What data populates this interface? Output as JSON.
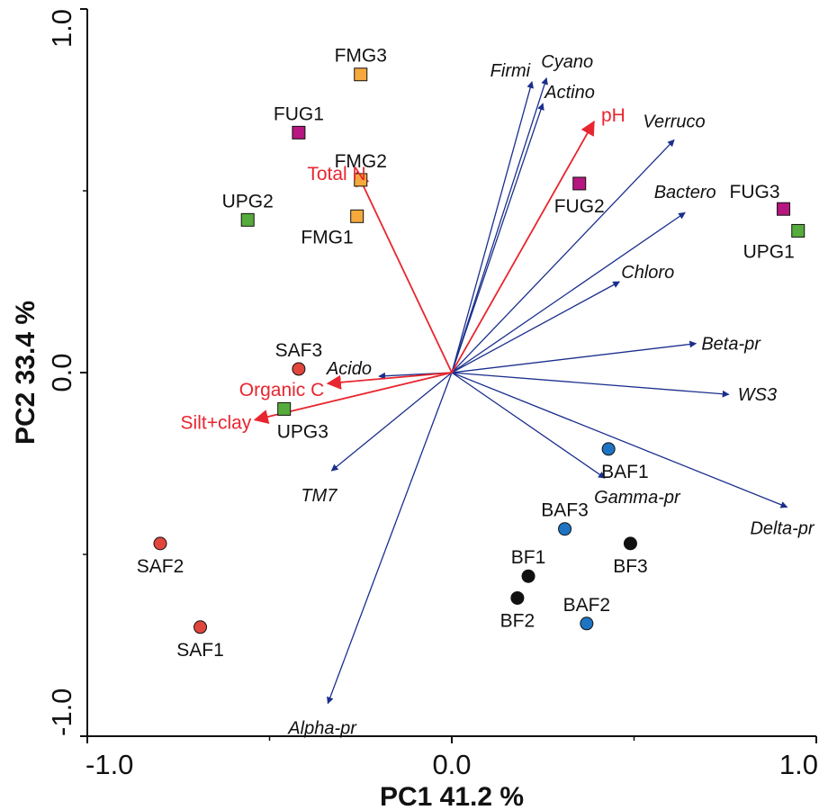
{
  "chart_data": {
    "type": "scatter",
    "subtype": "pca-biplot",
    "xlabel": "PC1 41.2 %",
    "ylabel": "PC2 33.4 %",
    "xlim": [
      -1.0,
      1.0
    ],
    "ylim": [
      -1.0,
      1.0
    ],
    "x_ticks": [
      {
        "value": -1.0,
        "label": "-1.0"
      },
      {
        "value": 0.0,
        "label": "0.0"
      },
      {
        "value": 1.0,
        "label": "1.0"
      }
    ],
    "y_ticks": [
      {
        "value": -1.0,
        "label": "-1.0"
      },
      {
        "value": 0.0,
        "label": "0.0"
      },
      {
        "value": 1.0,
        "label": "1.0"
      }
    ],
    "minor_ticks": [
      -0.5,
      0.5
    ],
    "grid": false,
    "colors": {
      "orange": "#f5a93c",
      "magenta": "#b5167f",
      "green": "#55ab3b",
      "red": "#e0463c",
      "blue": "#1e74c2",
      "black": "#111111",
      "species_arrow": "#1a2f8c",
      "env_arrow": "#e8262f"
    },
    "points": [
      {
        "name": "FMG3",
        "x": -0.25,
        "y": 0.82,
        "shape": "square",
        "color": "orange",
        "label_pos": "above"
      },
      {
        "name": "FUG1",
        "x": -0.42,
        "y": 0.66,
        "shape": "square",
        "color": "magenta",
        "label_pos": "above"
      },
      {
        "name": "FMG2",
        "x": -0.25,
        "y": 0.53,
        "shape": "square",
        "color": "orange",
        "label_pos": "above"
      },
      {
        "name": "FMG1",
        "x": -0.26,
        "y": 0.43,
        "shape": "square",
        "color": "orange",
        "label_pos": "below-left"
      },
      {
        "name": "UPG2",
        "x": -0.56,
        "y": 0.42,
        "shape": "square",
        "color": "green",
        "label_pos": "above"
      },
      {
        "name": "FUG2",
        "x": 0.35,
        "y": 0.52,
        "shape": "square",
        "color": "magenta",
        "label_pos": "below"
      },
      {
        "name": "FUG3",
        "x": 0.91,
        "y": 0.45,
        "shape": "square",
        "color": "magenta",
        "label_pos": "above-left"
      },
      {
        "name": "UPG1",
        "x": 0.95,
        "y": 0.39,
        "shape": "square",
        "color": "green",
        "label_pos": "below-left"
      },
      {
        "name": "UPG3",
        "x": -0.46,
        "y": -0.1,
        "shape": "square",
        "color": "green",
        "label_pos": "below-right"
      },
      {
        "name": "SAF3",
        "x": -0.42,
        "y": 0.01,
        "shape": "circle",
        "color": "red",
        "label_pos": "above"
      },
      {
        "name": "SAF2",
        "x": -0.8,
        "y": -0.47,
        "shape": "circle",
        "color": "red",
        "label_pos": "below"
      },
      {
        "name": "SAF1",
        "x": -0.69,
        "y": -0.7,
        "shape": "circle",
        "color": "red",
        "label_pos": "below"
      },
      {
        "name": "BAF1",
        "x": 0.43,
        "y": -0.21,
        "shape": "circle",
        "color": "blue",
        "label_pos": "below-right"
      },
      {
        "name": "BAF3",
        "x": 0.31,
        "y": -0.43,
        "shape": "circle",
        "color": "blue",
        "label_pos": "above"
      },
      {
        "name": "BAF2",
        "x": 0.37,
        "y": -0.69,
        "shape": "circle",
        "color": "blue",
        "label_pos": "above"
      },
      {
        "name": "BF3",
        "x": 0.49,
        "y": -0.47,
        "shape": "circle",
        "color": "black",
        "label_pos": "below"
      },
      {
        "name": "BF1",
        "x": 0.21,
        "y": -0.56,
        "shape": "circle",
        "color": "black",
        "label_pos": "above"
      },
      {
        "name": "BF2",
        "x": 0.18,
        "y": -0.62,
        "shape": "circle",
        "color": "black",
        "label_pos": "below"
      }
    ],
    "species_vectors": [
      {
        "name": "Firmi",
        "x": 0.22,
        "y": 0.8,
        "label_anchor": "end",
        "label_dx": -2,
        "label_dy": -6
      },
      {
        "name": "Cyano",
        "x": 0.26,
        "y": 0.81,
        "label_anchor": "start",
        "label_dx": -6,
        "label_dy": -12
      },
      {
        "name": "Actino",
        "x": 0.25,
        "y": 0.74,
        "label_anchor": "start",
        "label_dx": 2,
        "label_dy": -6
      },
      {
        "name": "Verruco",
        "x": 0.61,
        "y": 0.64,
        "label_anchor": "middle",
        "label_dx": 0,
        "label_dy": -14
      },
      {
        "name": "Bactero",
        "x": 0.64,
        "y": 0.44,
        "label_anchor": "middle",
        "label_dx": 0,
        "label_dy": -16
      },
      {
        "name": "Chloro",
        "x": 0.46,
        "y": 0.25,
        "label_anchor": "start",
        "label_dx": 2,
        "label_dy": -4
      },
      {
        "name": "Beta-pr",
        "x": 0.67,
        "y": 0.08,
        "label_anchor": "start",
        "label_dx": 6,
        "label_dy": 7
      },
      {
        "name": "WS3",
        "x": 0.76,
        "y": -0.06,
        "label_anchor": "start",
        "label_dx": 10,
        "label_dy": 7
      },
      {
        "name": "Delta-pr",
        "x": 0.92,
        "y": -0.37,
        "label_anchor": "end",
        "label_dx": 30,
        "label_dy": 30
      },
      {
        "name": "Gamma-pr",
        "x": 0.42,
        "y": -0.29,
        "label_anchor": "start",
        "label_dx": -12,
        "label_dy": 28
      },
      {
        "name": "Alpha-pr",
        "x": -0.34,
        "y": -0.91,
        "label_anchor": "start",
        "label_dx": -44,
        "label_dy": 34
      },
      {
        "name": "TM7",
        "x": -0.33,
        "y": -0.27,
        "label_anchor": "middle",
        "label_dx": -14,
        "label_dy": 34
      },
      {
        "name": "Acido",
        "x": -0.2,
        "y": -0.01,
        "label_anchor": "end",
        "label_dx": -8,
        "label_dy": -2
      }
    ],
    "environmental_vectors": [
      {
        "name": "pH",
        "x": 0.39,
        "y": 0.69,
        "label_anchor": "start",
        "label_dx": 8,
        "label_dy": 0
      },
      {
        "name": "Total N",
        "x": -0.26,
        "y": 0.55,
        "label_anchor": "end",
        "label_dx": 10,
        "label_dy": 8
      },
      {
        "name": "Organic C",
        "x": -0.34,
        "y": -0.03,
        "label_anchor": "end",
        "label_dx": -4,
        "label_dy": 14
      },
      {
        "name": "Silt+clay",
        "x": -0.54,
        "y": -0.13,
        "label_anchor": "end",
        "label_dx": -4,
        "label_dy": 10
      }
    ]
  }
}
